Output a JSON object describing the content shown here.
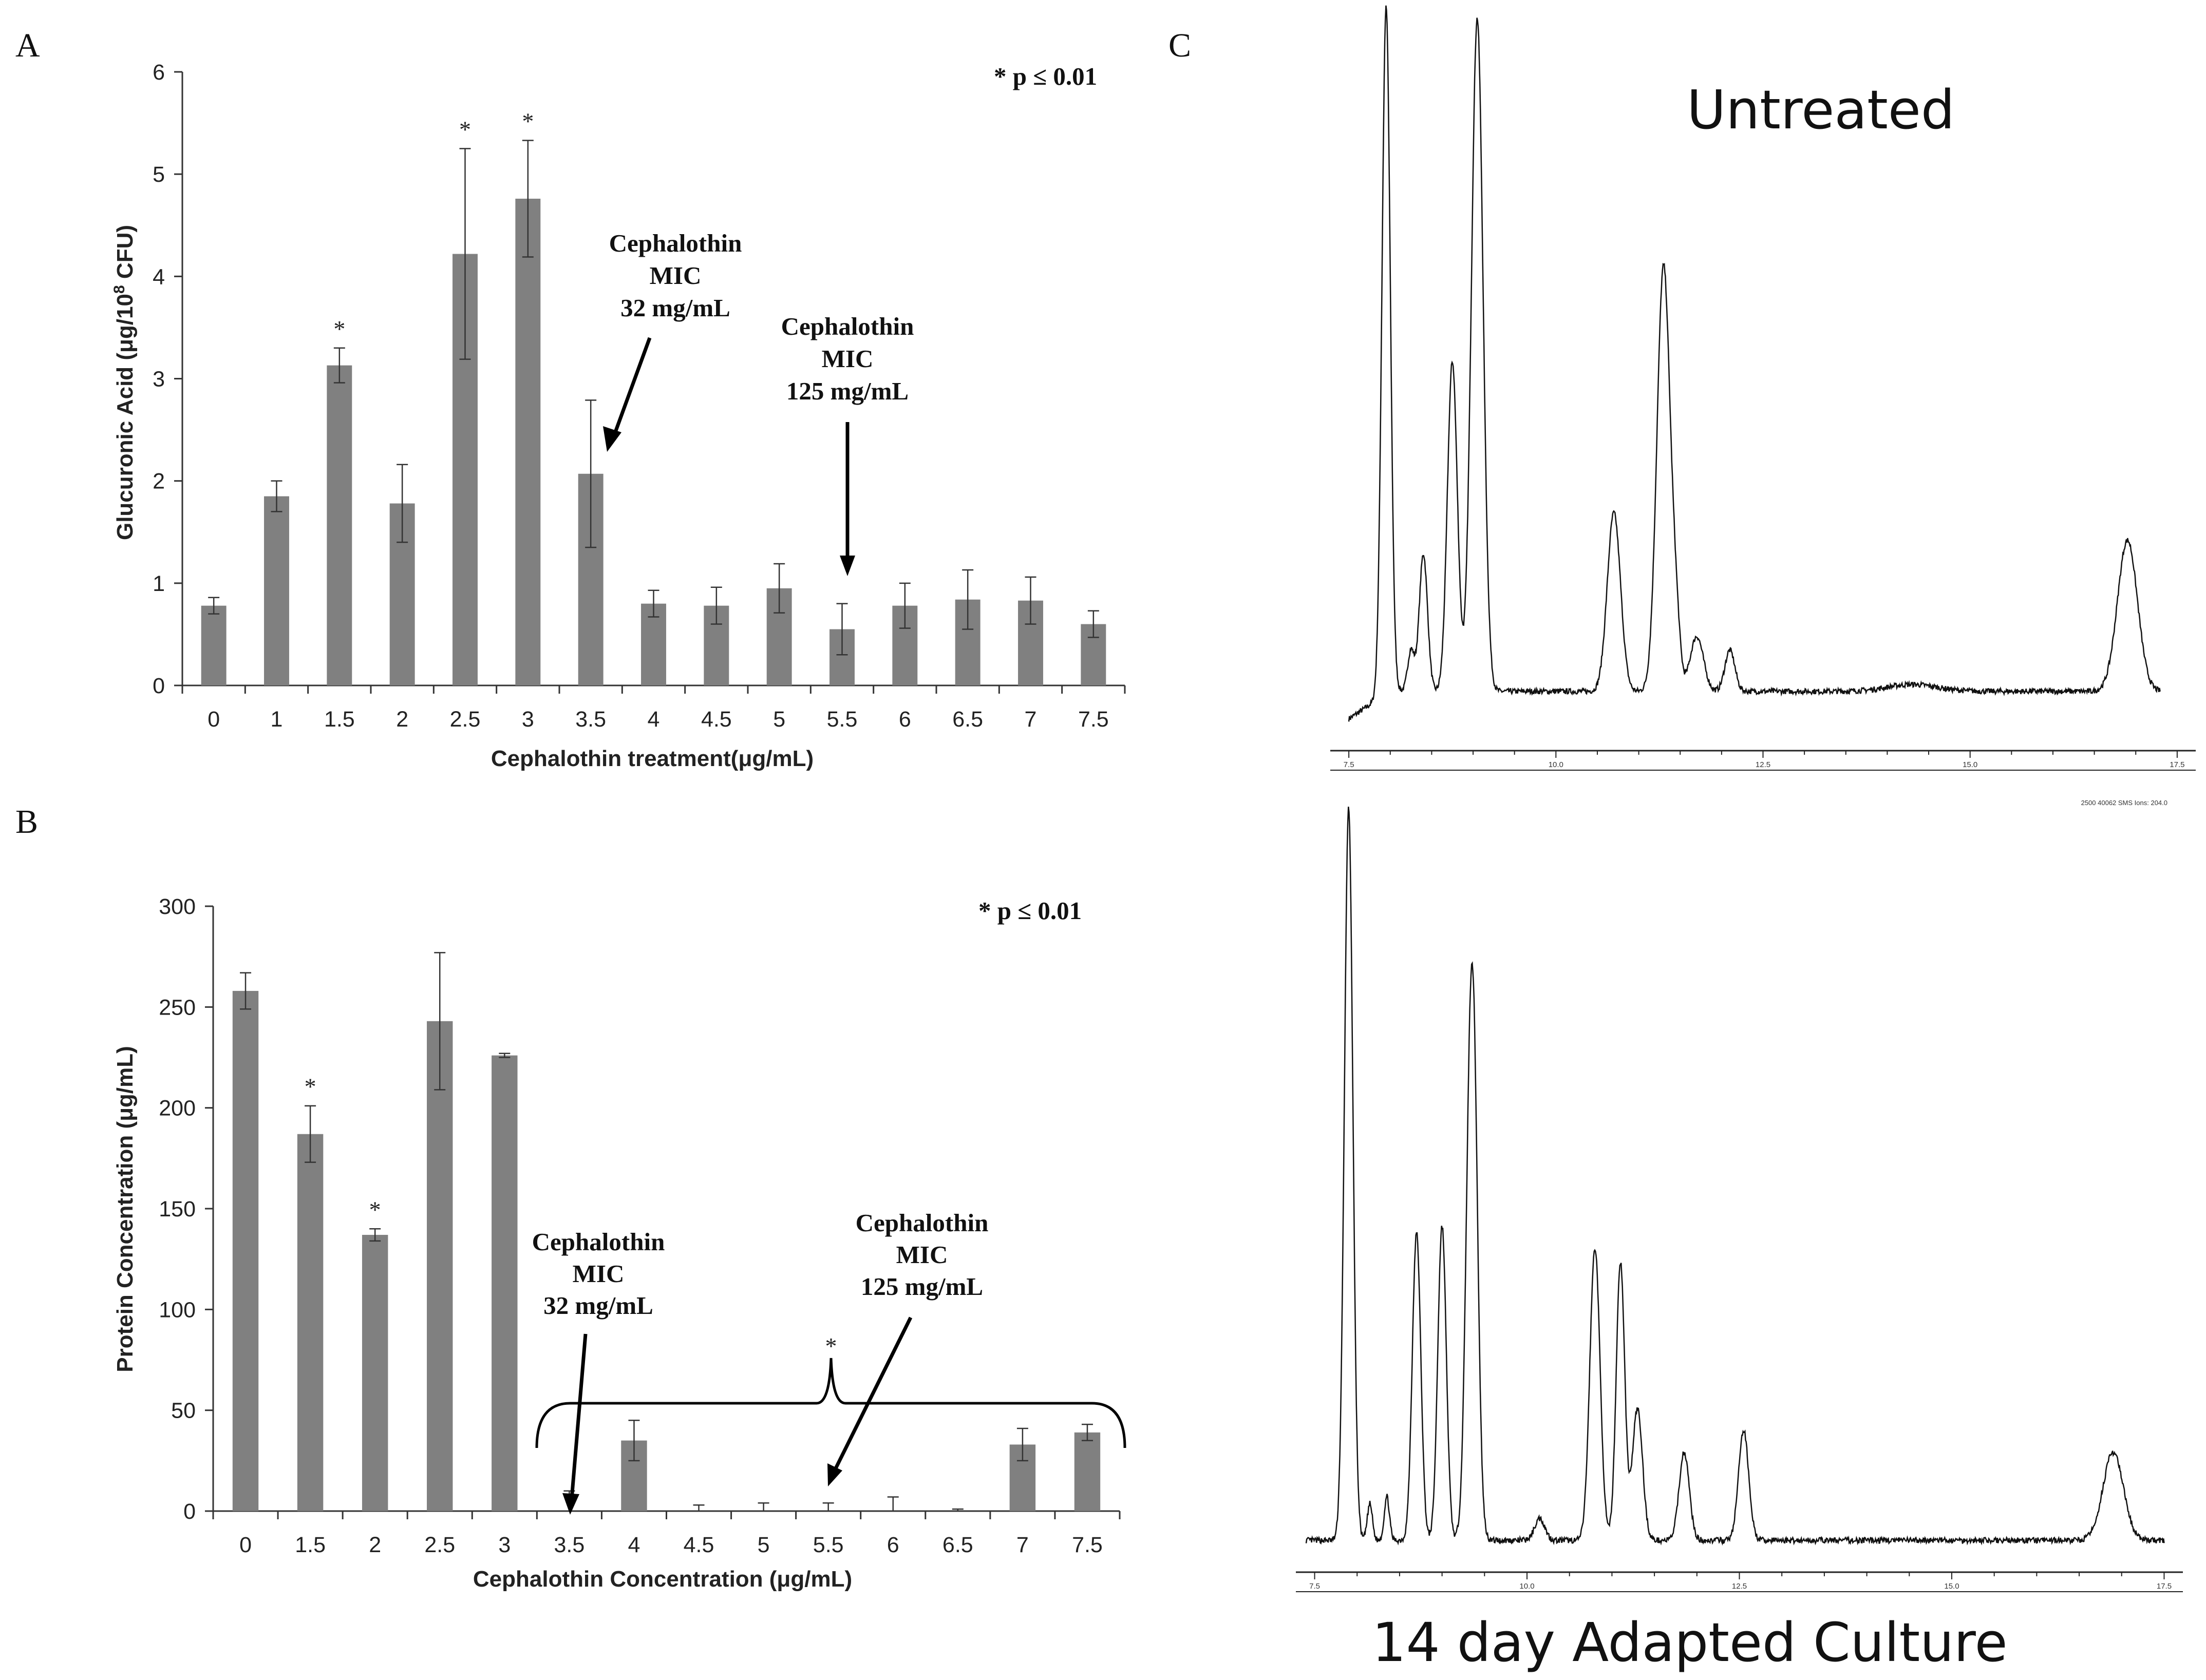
{
  "chart_data": [
    {
      "panel": "A",
      "type": "bar",
      "xlabel": "Cephalothin treatment(μg/mL)",
      "ylabel": "Glucuronic Acid  (μg/10",
      "ylabel_sup": "8",
      "ylabel_tail": " CFU)",
      "ylim": [
        0,
        6
      ],
      "yticks": [
        "0",
        "1",
        "2",
        "3",
        "4",
        "5",
        "6"
      ],
      "significance_note": "* p ≤ 0.01",
      "categories": [
        "0",
        "1",
        "1.5",
        "2",
        "2.5",
        "3",
        "3.5",
        "4",
        "4.5",
        "5",
        "5.5",
        "6",
        "6.5",
        "7",
        "7.5"
      ],
      "values": [
        0.78,
        1.85,
        3.13,
        1.78,
        4.22,
        4.76,
        2.07,
        0.8,
        0.78,
        0.95,
        0.55,
        0.78,
        0.84,
        0.83,
        0.6
      ],
      "errors": [
        0.08,
        0.15,
        0.17,
        0.38,
        1.03,
        0.57,
        0.72,
        0.13,
        0.18,
        0.24,
        0.25,
        0.22,
        0.29,
        0.23,
        0.13
      ],
      "significant": [
        "",
        "",
        "*",
        "",
        "*",
        "*",
        "",
        "",
        "",
        "",
        "",
        "",
        "",
        "",
        ""
      ],
      "annotations": [
        {
          "lines": [
            "Cephalothin",
            "MIC",
            "32 mg/mL"
          ],
          "points_to": "3.5"
        },
        {
          "lines": [
            "Cephalothin",
            "MIC",
            "125 mg/mL"
          ],
          "points_to": "5.5"
        }
      ]
    },
    {
      "panel": "B",
      "type": "bar",
      "xlabel": "Cephalothin Concentration (μg/mL)",
      "ylabel": "Protein Concentration (μg/mL)",
      "ylim": [
        0,
        300
      ],
      "yticks": [
        "0",
        "50",
        "100",
        "150",
        "200",
        "250",
        "300"
      ],
      "significance_note": "* p ≤ 0.01",
      "categories": [
        "0",
        "1.5",
        "2",
        "2.5",
        "3",
        "3.5",
        "4",
        "4.5",
        "5",
        "5.5",
        "6",
        "6.5",
        "7",
        "7.5"
      ],
      "values": [
        258,
        187,
        137,
        243,
        226,
        0,
        35,
        0,
        0,
        0,
        0,
        0,
        33,
        39
      ],
      "errors": [
        9,
        14,
        3,
        34,
        1,
        10,
        10,
        3,
        4,
        4,
        7,
        1,
        8,
        4
      ],
      "significant": [
        "",
        "*",
        "*",
        "",
        "",
        "",
        "",
        "",
        "",
        "",
        "",
        "",
        "",
        ""
      ],
      "bracket_star": "*",
      "annotations": [
        {
          "lines": [
            "Cephalothin",
            "MIC",
            "32 mg/mL"
          ],
          "points_to": "3.5"
        },
        {
          "lines": [
            "Cephalothin",
            "MIC",
            "125 mg/mL"
          ],
          "points_to": "5.5"
        }
      ]
    },
    {
      "panel": "C",
      "type": "line",
      "title_top": "Untreated",
      "title_bottom": "14 day Adapted Culture",
      "header_bottom": "2500 40062 SMS Ions: 204.0",
      "x_range": [
        7.4,
        17.6
      ],
      "xticks": [
        "7.5",
        "10.0",
        "12.5",
        "15.0",
        "17.5"
      ],
      "series": [
        {
          "name": "Untreated",
          "baseline": 0.04,
          "x_start": 7.5,
          "x_end": 17.3,
          "peaks": [
            [
              7.95,
              1.0
            ],
            [
              8.25,
              0.06
            ],
            [
              8.4,
              0.2
            ],
            [
              8.75,
              0.48
            ],
            [
              9.05,
              0.98
            ],
            [
              10.7,
              0.26
            ],
            [
              11.3,
              0.62
            ],
            [
              11.45,
              0.08
            ],
            [
              11.7,
              0.08
            ],
            [
              12.1,
              0.06
            ],
            [
              14.3,
              0.01
            ],
            [
              16.9,
              0.22
            ]
          ],
          "widths": [
            0.05,
            0.04,
            0.05,
            0.06,
            0.07,
            0.08,
            0.08,
            0.05,
            0.08,
            0.06,
            0.3,
            0.12
          ]
        },
        {
          "name": "14 day Adapted Culture",
          "baseline": 0.0,
          "x_start": 7.4,
          "x_end": 17.5,
          "peaks": [
            [
              7.9,
              1.0
            ],
            [
              8.15,
              0.05
            ],
            [
              8.35,
              0.06
            ],
            [
              8.7,
              0.42
            ],
            [
              9.0,
              0.43
            ],
            [
              9.35,
              0.78
            ],
            [
              9.4,
              0.04
            ],
            [
              10.15,
              0.03
            ],
            [
              10.8,
              0.4
            ],
            [
              11.1,
              0.38
            ],
            [
              11.3,
              0.18
            ],
            [
              11.85,
              0.12
            ],
            [
              12.55,
              0.15
            ],
            [
              16.9,
              0.12
            ]
          ],
          "widths": [
            0.05,
            0.03,
            0.03,
            0.05,
            0.05,
            0.06,
            0.03,
            0.06,
            0.06,
            0.05,
            0.06,
            0.06,
            0.06,
            0.12
          ]
        }
      ]
    }
  ]
}
